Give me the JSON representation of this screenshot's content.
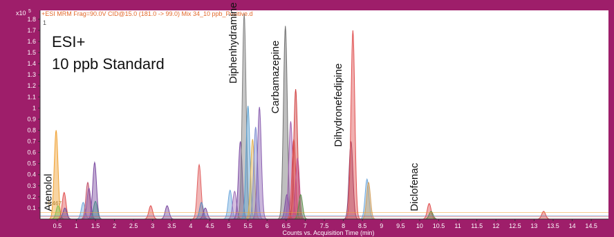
{
  "chart_data": {
    "type": "area",
    "header": "+ESI MRM Frag=90.0V CID@15.0 (181.0 -> 99.0) Mix 34_10 ppb_Positive.d",
    "y_multiplier": "x10",
    "y_exponent": "5",
    "corner_marker": "1",
    "title_line1": "ESI+",
    "title_line2": "10 ppb Standard",
    "xlabel": "Counts vs. Acquisition Time (min)",
    "xlim": [
      0.05,
      14.95
    ],
    "ylim": [
      0,
      1.88
    ],
    "xticks": [
      "0.5",
      "1",
      "1.5",
      "2",
      "2.5",
      "3",
      "3.5",
      "4",
      "4.5",
      "5",
      "5.5",
      "6",
      "6.5",
      "7",
      "7.5",
      "8",
      "8.5",
      "9",
      "9.5",
      "10",
      "10.5",
      "11",
      "11.5",
      "12",
      "12.5",
      "13",
      "13.5",
      "14",
      "14.5"
    ],
    "yticks": [
      "0.1",
      "0.2",
      "0.3",
      "0.4",
      "0.5",
      "0.6",
      "0.7",
      "0.8",
      "0.9",
      "1",
      "1.1",
      "1.2",
      "1.3",
      "1.4",
      "1.5",
      "1.6",
      "1.7",
      "1.8"
    ],
    "rt_annotation": "0.467",
    "annotations": [
      {
        "text": "Atenolol",
        "x": 0.35,
        "y": 0.07
      },
      {
        "text": "Diphenhydramine",
        "x": 5.2,
        "y": 1.22
      },
      {
        "text": "Carbamazepine",
        "x": 6.3,
        "y": 0.95
      },
      {
        "text": "Dihydronefedipine",
        "x": 7.95,
        "y": 0.65
      },
      {
        "text": "Diclofenac",
        "x": 9.95,
        "y": 0.07
      }
    ],
    "peaks": [
      {
        "rt": 0.47,
        "height": 0.8,
        "width": 0.05,
        "color": "#f0a030"
      },
      {
        "rt": 0.52,
        "height": 0.12,
        "width": 0.05,
        "color": "#7fbf4f"
      },
      {
        "rt": 0.68,
        "height": 0.24,
        "width": 0.05,
        "color": "#e05050"
      },
      {
        "rt": 0.7,
        "height": 0.1,
        "width": 0.05,
        "color": "#6a4a9a"
      },
      {
        "rt": 1.18,
        "height": 0.15,
        "width": 0.05,
        "color": "#6fa8dc"
      },
      {
        "rt": 1.3,
        "height": 0.33,
        "width": 0.05,
        "color": "#c0506a"
      },
      {
        "rt": 1.33,
        "height": 0.28,
        "width": 0.05,
        "color": "#8a5aa8"
      },
      {
        "rt": 1.48,
        "height": 0.51,
        "width": 0.05,
        "color": "#7a4aa0"
      },
      {
        "rt": 1.5,
        "height": 0.16,
        "width": 0.05,
        "color": "#4a8a8a"
      },
      {
        "rt": 2.95,
        "height": 0.12,
        "width": 0.05,
        "color": "#e05050"
      },
      {
        "rt": 3.38,
        "height": 0.12,
        "width": 0.05,
        "color": "#7a4aa0"
      },
      {
        "rt": 4.22,
        "height": 0.49,
        "width": 0.05,
        "color": "#e06060"
      },
      {
        "rt": 4.28,
        "height": 0.15,
        "width": 0.05,
        "color": "#5a8ac0"
      },
      {
        "rt": 4.38,
        "height": 0.1,
        "width": 0.05,
        "color": "#7a4aa0"
      },
      {
        "rt": 5.03,
        "height": 0.26,
        "width": 0.05,
        "color": "#6fa8dc"
      },
      {
        "rt": 5.15,
        "height": 0.25,
        "width": 0.05,
        "color": "#a070b8"
      },
      {
        "rt": 5.3,
        "height": 0.7,
        "width": 0.05,
        "color": "#7a4aa0"
      },
      {
        "rt": 5.4,
        "height": 1.85,
        "width": 0.05,
        "color": "#808080"
      },
      {
        "rt": 5.5,
        "height": 1.02,
        "width": 0.05,
        "color": "#5aa0d0"
      },
      {
        "rt": 5.62,
        "height": 0.72,
        "width": 0.05,
        "color": "#e0b050"
      },
      {
        "rt": 5.7,
        "height": 0.83,
        "width": 0.05,
        "color": "#7a8ad0"
      },
      {
        "rt": 5.8,
        "height": 1.01,
        "width": 0.05,
        "color": "#8a60b0"
      },
      {
        "rt": 6.48,
        "height": 1.74,
        "width": 0.05,
        "color": "#707070"
      },
      {
        "rt": 6.52,
        "height": 0.22,
        "width": 0.05,
        "color": "#7a4aa0"
      },
      {
        "rt": 6.62,
        "height": 0.88,
        "width": 0.05,
        "color": "#a060b0"
      },
      {
        "rt": 6.7,
        "height": 0.72,
        "width": 0.05,
        "color": "#e05050"
      },
      {
        "rt": 6.75,
        "height": 1.17,
        "width": 0.05,
        "color": "#d04040"
      },
      {
        "rt": 6.8,
        "height": 0.55,
        "width": 0.05,
        "color": "#c05090"
      },
      {
        "rt": 6.88,
        "height": 0.22,
        "width": 0.05,
        "color": "#5a8a4a"
      },
      {
        "rt": 8.2,
        "height": 0.7,
        "width": 0.05,
        "color": "#8a3a6a"
      },
      {
        "rt": 8.25,
        "height": 1.7,
        "width": 0.05,
        "color": "#e05050"
      },
      {
        "rt": 8.62,
        "height": 0.36,
        "width": 0.05,
        "color": "#6fa8dc"
      },
      {
        "rt": 8.66,
        "height": 0.33,
        "width": 0.05,
        "color": "#d0a060"
      },
      {
        "rt": 10.25,
        "height": 0.14,
        "width": 0.05,
        "color": "#e05050"
      },
      {
        "rt": 10.3,
        "height": 0.07,
        "width": 0.05,
        "color": "#5a8a4a"
      },
      {
        "rt": 13.25,
        "height": 0.07,
        "width": 0.05,
        "color": "#e05050"
      }
    ],
    "baselines": [
      {
        "color": "#f0a030",
        "level": 0.06
      },
      {
        "color": "#e05050",
        "level": 0.02
      },
      {
        "color": "#5a8ac0",
        "level": 0.03
      }
    ],
    "grid": false
  }
}
